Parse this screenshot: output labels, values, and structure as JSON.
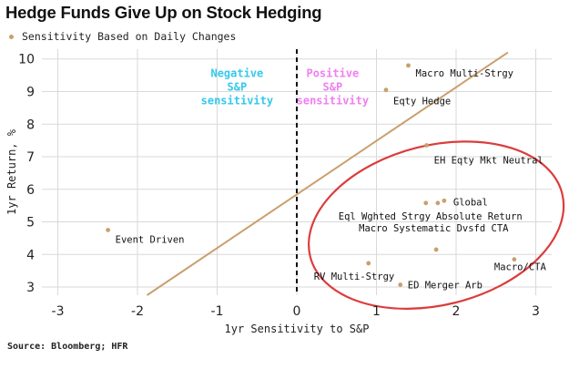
{
  "title": "Hedge Funds Give Up on Stock Hedging",
  "source": "Source: Bloomberg; HFR",
  "colors": {
    "point": "#c8a06c",
    "regression": "#c8a06c",
    "negative_annotation": "#36c8ec",
    "positive_annotation": "#f07ff0",
    "circle": "#dc3c3c",
    "grid": "#d9d9d9"
  },
  "chart_data": {
    "type": "scatter",
    "xlabel": "1yr Sensitivity to S&P",
    "ylabel": "1yr Return, %",
    "xlim": [
      -3.2,
      3.2
    ],
    "ylim": [
      2.75,
      10.3
    ],
    "xticks": [
      -3,
      -2,
      -1,
      0,
      1,
      2,
      3
    ],
    "yticks": [
      3,
      4,
      5,
      6,
      7,
      8,
      9,
      10
    ],
    "grid": true,
    "legend_position": "top-left",
    "series": [
      {
        "name": "Sensitivity Based on Daily Changes",
        "points": [
          {
            "x": 1.4,
            "y": 9.8,
            "label": "Macro Multi-Strgy"
          },
          {
            "x": 1.12,
            "y": 9.05,
            "label": "Eqty Hedge"
          },
          {
            "x": 1.63,
            "y": 7.35,
            "label": "EH Eqty Mkt Neutral"
          },
          {
            "x": 1.85,
            "y": 5.65,
            "label": "Global"
          },
          {
            "x": 1.62,
            "y": 5.58,
            "label": "Eql Wghted Strgy"
          },
          {
            "x": 1.77,
            "y": 5.58,
            "label": "Absolute Return"
          },
          {
            "x": 1.75,
            "y": 4.15,
            "label": "Macro Systematic Dvsfd CTA"
          },
          {
            "x": 2.73,
            "y": 3.85,
            "label": "Macro/CTA"
          },
          {
            "x": -2.37,
            "y": 4.75,
            "label": "Event Driven"
          },
          {
            "x": 0.9,
            "y": 3.73,
            "label": "RV Multi-Strgy"
          },
          {
            "x": 1.3,
            "y": 3.07,
            "label": "ED Merger Arb"
          }
        ]
      }
    ],
    "regression_line": {
      "x": [
        -1.88,
        2.65
      ],
      "y": [
        2.75,
        10.2
      ]
    },
    "zero_line_x": 0,
    "annotations": [
      {
        "lines": [
          "Negative",
          "S&P",
          "sensitivity"
        ],
        "x": -0.75,
        "y": 9.45
      },
      {
        "lines": [
          "Positive",
          "S&P",
          "sensitivity"
        ],
        "x": 0.45,
        "y": 9.45
      }
    ],
    "highlight_ellipse": {
      "cx": 1.75,
      "cy": 4.9,
      "rx": 1.63,
      "ry": 2.45,
      "rotate": -14
    }
  }
}
